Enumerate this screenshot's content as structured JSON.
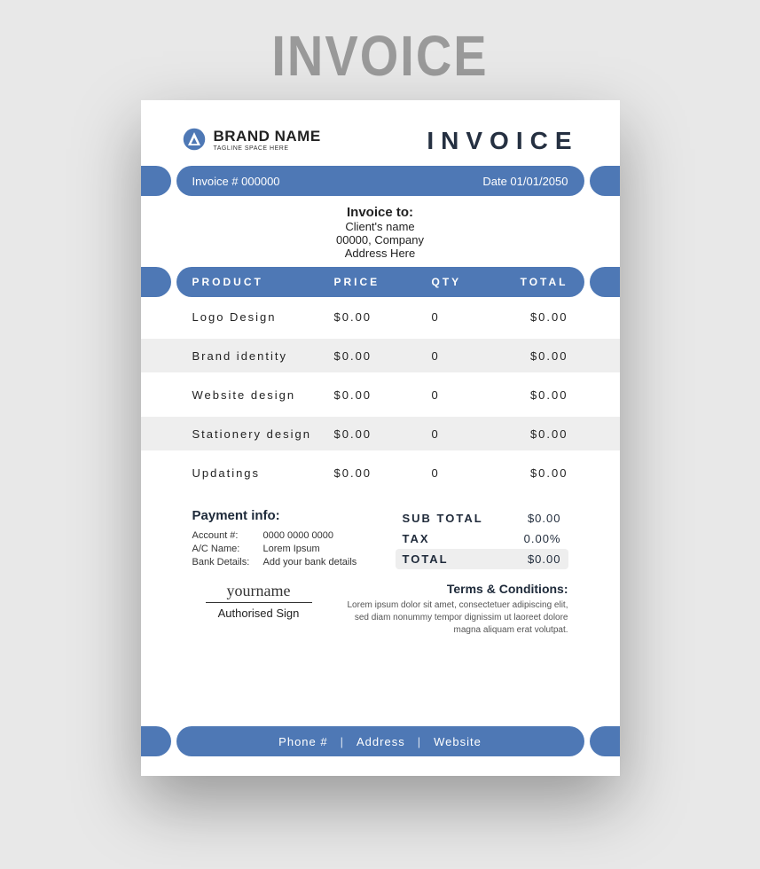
{
  "colors": {
    "page_bg": "#e8e8e8",
    "sheet_bg": "#ffffff",
    "accent": "#4e78b5",
    "row_alt_bg": "#eeeeee",
    "title_gray": "#9a9a9a",
    "text_dark": "#253041"
  },
  "page_title": "INVOICE",
  "header": {
    "brand_name": "BRAND NAME",
    "tagline": "TAGLINE SPACE HERE",
    "document_title": "INVOICE"
  },
  "info_bar": {
    "invoice_no_label": "Invoice # 000000",
    "date_label": "Date  01/01/2050"
  },
  "invoice_to": {
    "title": "Invoice to:",
    "line1": "Client's name",
    "line2": "00000, Company",
    "line3": "Address Here"
  },
  "table": {
    "columns": {
      "product": "PRODUCT",
      "price": "PRICE",
      "qty": "QTY",
      "total": "TOTAL"
    },
    "rows": [
      {
        "product": "Logo Design",
        "price": "$0.00",
        "qty": "0",
        "total": "$0.00",
        "alt": false
      },
      {
        "product": "Brand identity",
        "price": "$0.00",
        "qty": "0",
        "total": "$0.00",
        "alt": true
      },
      {
        "product": "Website design",
        "price": "$0.00",
        "qty": "0",
        "total": "$0.00",
        "alt": false
      },
      {
        "product": "Stationery design",
        "price": "$0.00",
        "qty": "0",
        "total": "$0.00",
        "alt": true
      },
      {
        "product": "Updatings",
        "price": "$0.00",
        "qty": "0",
        "total": "$0.00",
        "alt": false
      }
    ]
  },
  "payment": {
    "title": "Payment info:",
    "rows": [
      {
        "k": "Account #:",
        "v": "0000 0000 0000"
      },
      {
        "k": "A/C Name:",
        "v": "Lorem Ipsum"
      },
      {
        "k": "Bank Details:",
        "v": "Add your bank details"
      }
    ]
  },
  "totals": {
    "subtotal_label": "SUB TOTAL",
    "subtotal_value": "$0.00",
    "tax_label": "TAX",
    "tax_value": "0.00%",
    "total_label": "TOTAL",
    "total_value": "$0.00"
  },
  "signature": {
    "name": "yourname",
    "label": "Authorised Sign"
  },
  "terms": {
    "title": "Terms & Conditions:",
    "body": "Lorem ipsum dolor sit amet, consectetuer adipiscing elit, sed diam nonummy tempor dignissim ut laoreet dolore magna aliquam erat volutpat."
  },
  "footer": {
    "phone": "Phone #",
    "address": "Address",
    "website": "Website",
    "sep": "|"
  }
}
